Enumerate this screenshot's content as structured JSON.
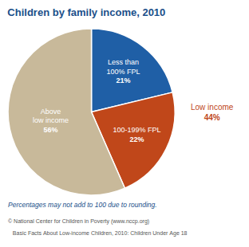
{
  "chart_data": {
    "type": "pie",
    "title": "Children by family income, 2010",
    "title_color": "#1a4f8a",
    "categories": [
      "Less than\n100% FPL",
      "100-199% FPL",
      "Above\nlow income"
    ],
    "values": [
      21,
      22,
      56
    ],
    "value_labels": [
      "21%",
      "22%",
      "56%"
    ],
    "colors": [
      "#1f5fa6",
      "#c0471a",
      "#c8b99a"
    ],
    "annotations": [
      {
        "text": "Low income\n44%",
        "color": "#c0471a"
      },
      {
        "text": "Percentages may not add to 100 due to rounding.",
        "color": "#1a4f8a"
      },
      {
        "text": "© National Center for Children in Poverty (www.nccp.org)",
        "color": "#555555"
      },
      {
        "text": "   Basic Facts About Low-income Children, 2010: Children Under Age 18",
        "color": "#555555"
      }
    ]
  }
}
